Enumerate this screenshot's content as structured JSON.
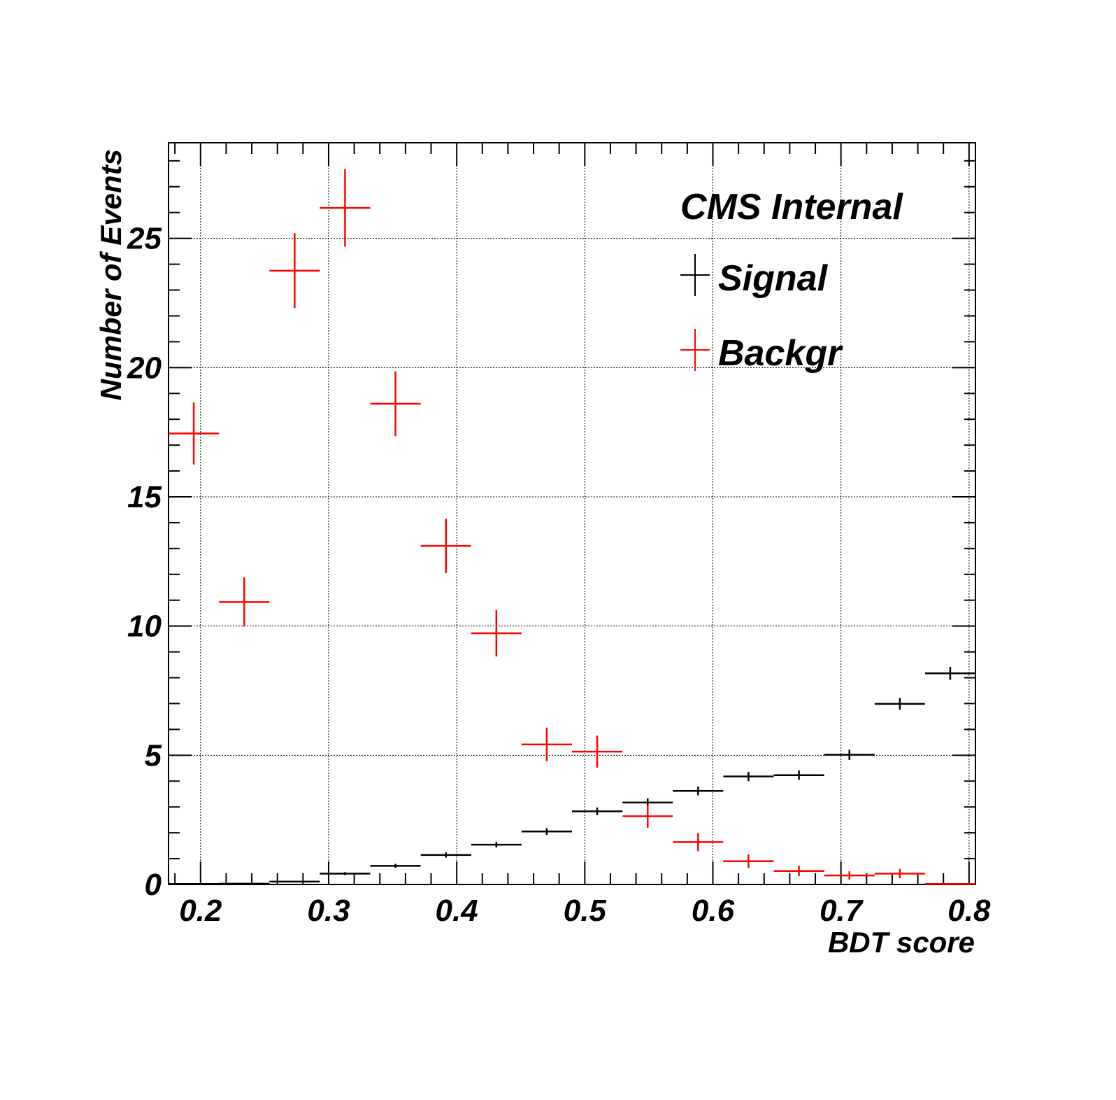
{
  "chart_data": {
    "type": "scatter",
    "title": "",
    "annotation": "CMS Internal",
    "xlabel": "BDT score",
    "ylabel": "Number of Events",
    "xlim": [
      0.175,
      0.805
    ],
    "ylim": [
      0,
      28.7
    ],
    "xticks": [
      "0.2",
      "0.3",
      "0.4",
      "0.5",
      "0.6",
      "0.7",
      "0.8"
    ],
    "yticks": [
      "0",
      "5",
      "10",
      "15",
      "20",
      "25"
    ],
    "grid": true,
    "legend_position": "top-right",
    "bin_edges": [
      0.175,
      0.2144,
      0.2538,
      0.2931,
      0.3325,
      0.3719,
      0.4113,
      0.4506,
      0.49,
      0.5294,
      0.5688,
      0.6081,
      0.6475,
      0.6869,
      0.7263,
      0.7656,
      0.805
    ],
    "series": [
      {
        "name": "Signal",
        "color": "#000000",
        "values": [
          0.02,
          0.03,
          0.11,
          0.42,
          0.72,
          1.14,
          1.54,
          2.05,
          2.83,
          3.17,
          3.62,
          4.18,
          4.23,
          5.02,
          6.99,
          8.17
        ],
        "errors": [
          0.01,
          0.01,
          0.03,
          0.06,
          0.08,
          0.1,
          0.11,
          0.13,
          0.15,
          0.16,
          0.17,
          0.18,
          0.18,
          0.2,
          0.23,
          0.25
        ]
      },
      {
        "name": "Backgr",
        "color": "#ff0000",
        "values": [
          17.45,
          10.93,
          23.75,
          26.18,
          18.6,
          13.1,
          9.72,
          5.42,
          5.14,
          2.64,
          1.64,
          0.9,
          0.52,
          0.35,
          0.42,
          0.02
        ],
        "errors": [
          1.2,
          0.95,
          1.45,
          1.5,
          1.25,
          1.05,
          0.9,
          0.65,
          0.62,
          0.45,
          0.35,
          0.26,
          0.2,
          0.16,
          0.18,
          0.02
        ]
      }
    ]
  }
}
